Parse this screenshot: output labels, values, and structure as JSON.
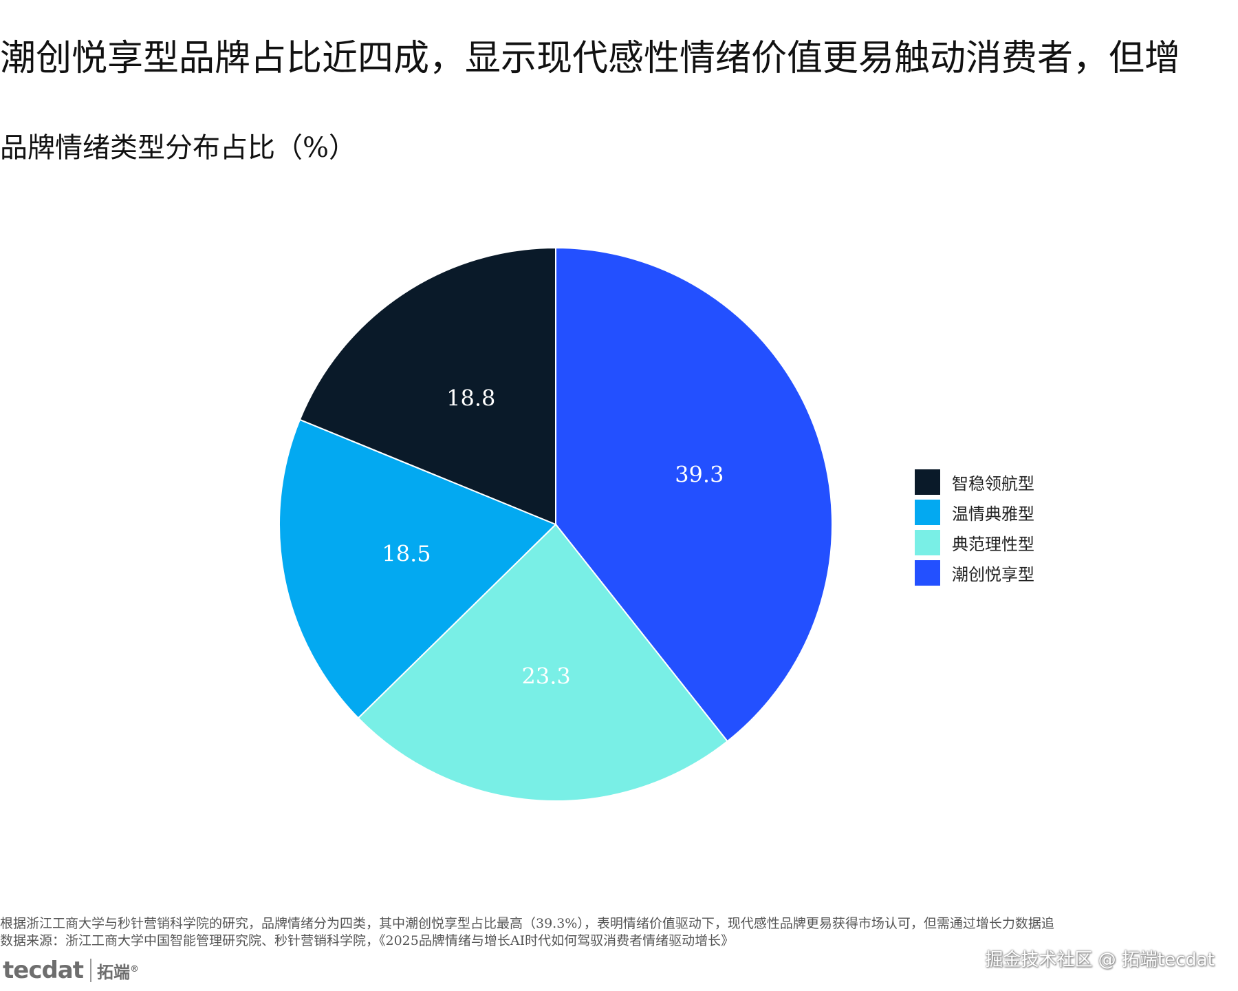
{
  "headline": "潮创悦享型品牌占比近四成，显示现代感性情绪价值更易触动消费者，但增",
  "chart_data": {
    "type": "pie",
    "title": "品牌情绪类型分布占比（%）",
    "categories": [
      "潮创悦享型",
      "典范理性型",
      "温情典雅型",
      "智稳领航型"
    ],
    "values": [
      39.3,
      23.3,
      18.5,
      18.8
    ],
    "value_labels": [
      "39.3",
      "23.3",
      "18.5",
      "18.8"
    ],
    "colors": [
      "#2350ff",
      "#79efe6",
      "#03a9f1",
      "#0a1a29"
    ],
    "label_colors": [
      "#ffffff",
      "#ffffff",
      "#ffffff",
      "#ffffff"
    ],
    "start_angle_deg": 0,
    "direction": "clockwise",
    "legend": {
      "position": "right",
      "entries": [
        "智稳领航型",
        "温情典雅型",
        "典范理性型",
        "潮创悦享型"
      ],
      "colors": [
        "#0a1a29",
        "#03a9f1",
        "#79efe6",
        "#2350ff"
      ]
    }
  },
  "footer": {
    "note": "根据浙江工商大学与秒针营销科学院的研究，品牌情绪分为四类，其中潮创悦享型占比最高（39.3%），表明情绪价值驱动下，现代感性品牌更易获得市场认可，但需通过增长力数据追",
    "source": "数据来源：浙江工商大学中国智能管理研究院、秒针营销科学院，《2025品牌情绪与增长AI时代如何驾驭消费者情绪驱动增长》"
  },
  "logo": {
    "main": "tecdat",
    "sub": "拓端",
    "reg": "®"
  },
  "watermark": "掘金技术社区 @ 拓端tecdat"
}
